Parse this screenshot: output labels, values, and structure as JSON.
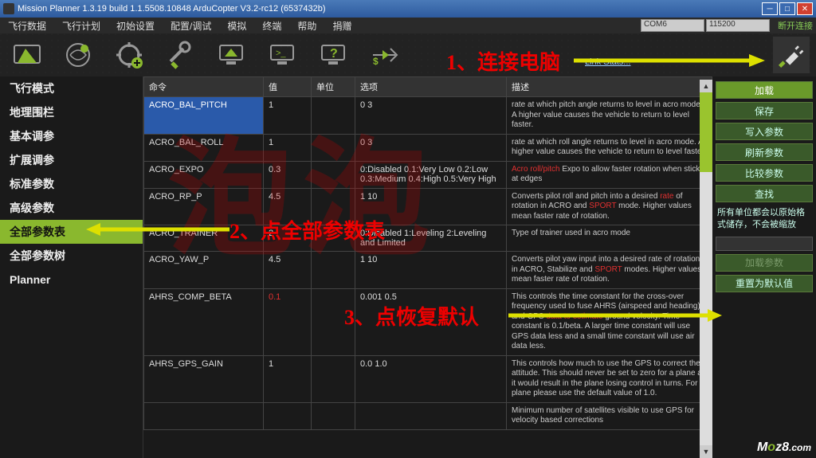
{
  "window": {
    "title": "Mission Planner 1.3.19 build 1.1.5508.10848 ArduCopter V3.2-rc12 (6537432b)"
  },
  "topnav": {
    "items": [
      "飞行数据",
      "飞行计划",
      "初始设置",
      "配置/调试",
      "模拟",
      "终端",
      "帮助",
      "捐赠"
    ],
    "com_port": "COM6",
    "baud": "115200",
    "disconnect": "断开连接",
    "link_stats": "Link Stats..."
  },
  "sidebar": {
    "items": [
      {
        "label": "飞行模式",
        "active": false
      },
      {
        "label": "地理围栏",
        "active": false
      },
      {
        "label": "基本调参",
        "active": false
      },
      {
        "label": "扩展调参",
        "active": false
      },
      {
        "label": "标准参数",
        "active": false
      },
      {
        "label": "高级参数",
        "active": false
      },
      {
        "label": "全部参数表",
        "active": true
      },
      {
        "label": "全部参数树",
        "active": false
      },
      {
        "label": "Planner",
        "active": false
      }
    ]
  },
  "table": {
    "headers": {
      "cmd": "命令",
      "val": "值",
      "unit": "单位",
      "opt": "选项",
      "desc": "描述"
    },
    "rows": [
      {
        "name": "ACRO_BAL_PITCH",
        "val": "1",
        "unit": "",
        "opt": "0 3",
        "desc": "rate at which pitch angle returns to level in acro mode.  A higher value causes the vehicle to return to level faster.",
        "sel": true
      },
      {
        "name": "ACRO_BAL_ROLL",
        "val": "1",
        "unit": "",
        "opt": "0 3",
        "desc": "rate at which roll angle returns to level in acro mode.  A higher value causes the vehicle to return to level faster."
      },
      {
        "name": "ACRO_EXPO",
        "val": "0.3",
        "unit": "",
        "opt": "0:Disabled 0.1:Very Low 0.2:Low 0.3:Medium 0.4:High 0.5:Very High",
        "desc": "<span class='red'>Acro roll/pitch</span> Expo to allow faster rotation when stick at edges"
      },
      {
        "name": "ACRO_RP_P",
        "val": "4.5",
        "unit": "",
        "opt": "1 10",
        "desc": "Converts pilot roll and pitch into a desired <span class='red'>rate</span> of rotation in ACRO and <span class='red'>SPORT</span> mode.  Higher values mean faster rate of rotation."
      },
      {
        "name": "ACRO_TRAINER",
        "val": "2",
        "unit": "",
        "opt": "0:Disabled 1:Leveling 2:Leveling and Limited",
        "desc": "Type of trainer used in acro mode"
      },
      {
        "name": "ACRO_YAW_P",
        "val": "4.5",
        "unit": "",
        "opt": "1 10",
        "desc": "Converts pilot yaw input into a desired rate of rotation in ACRO, Stabilize and <span class='red'>SPORT</span> modes.  Higher values mean faster rate of rotation."
      },
      {
        "name": "AHRS_COMP_BETA",
        "val": "0.1",
        "unit": "",
        "opt": "0.001 0.5",
        "desc": "This controls the time constant for the cross-over frequency used to fuse AHRS (airspeed and heading) and GPS <span class='red'>data to estimate</span> ground velocity. Time constant is 0.1/beta. A larger time constant will use GPS data less and a small time constant will use air data less.",
        "valred": true
      },
      {
        "name": "AHRS_GPS_GAIN",
        "val": "1",
        "unit": "",
        "opt": "0.0 1.0",
        "desc": "This controls how much to use the GPS to correct the attitude. This should never be set to zero for a plane as it would result in the plane losing control in turns. For a plane please use the default value of 1.0."
      },
      {
        "name": "",
        "val": "",
        "unit": "",
        "opt": "",
        "desc": "Minimum number of satellites visible to use GPS for velocity based corrections"
      }
    ]
  },
  "rightpanel": {
    "buttons": {
      "load": "加载",
      "save": "保存",
      "write": "写入参数",
      "refresh": "刷新参数",
      "compare": "比较参数",
      "find": "查找",
      "load_preset": "加载参数",
      "reset": "重置为默认值"
    },
    "note": "所有单位都会以原始格式储存，不会被缩放"
  },
  "annotations": {
    "a1": "1、连接电脑",
    "a2": "2、点全部参数表",
    "a3": "3、点恢复默认",
    "watermark": "泡泡",
    "moz8": "Moz8.com"
  },
  "colors": {
    "accent": "#8ab82e",
    "titlebar": "#2d5a9e",
    "bg": "#1a1a1a",
    "red": "#e00000"
  }
}
